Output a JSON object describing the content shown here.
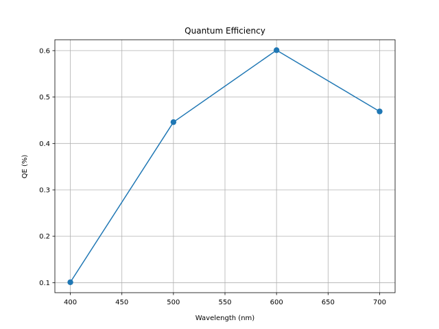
{
  "chart_data": {
    "type": "line",
    "title": "Quantum Efficiency",
    "xlabel": "Wavelength (nm)",
    "ylabel": "QE (%)",
    "x": [
      400,
      500,
      600,
      700
    ],
    "series": [
      {
        "values": [
          0.101,
          0.446,
          0.601,
          0.469
        ],
        "color": "#1f77b4",
        "marker": "circle"
      }
    ],
    "xlim": [
      385,
      715
    ],
    "ylim": [
      0.0785,
      0.6235
    ],
    "xticks": [
      400,
      450,
      500,
      550,
      600,
      650,
      700
    ],
    "yticks": [
      0.1,
      0.2,
      0.3,
      0.4,
      0.5,
      0.6
    ],
    "xtick_labels": [
      "400",
      "450",
      "500",
      "550",
      "600",
      "650",
      "700"
    ],
    "ytick_labels": [
      "0.1",
      "0.2",
      "0.3",
      "0.4",
      "0.5",
      "0.6"
    ],
    "grid": true,
    "grid_color": "#b0b0b0"
  }
}
